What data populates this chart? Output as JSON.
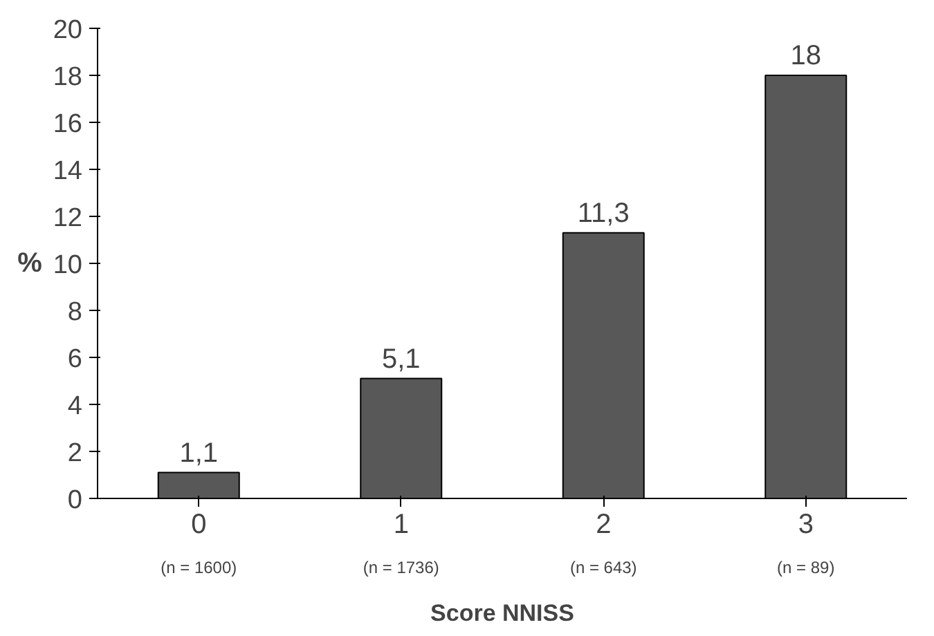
{
  "chart_data": {
    "type": "bar",
    "xlabel": "Score NNISS",
    "ylabel": "%",
    "categories": [
      "0",
      "1",
      "2",
      "3"
    ],
    "values": [
      1.1,
      5.1,
      11.3,
      18
    ],
    "value_labels": [
      "1,1",
      "5,1",
      "11,3",
      "18"
    ],
    "color": "#585858",
    "ylim": [
      0,
      20
    ],
    "yticks": [
      0,
      2,
      4,
      6,
      8,
      10,
      12,
      14,
      16,
      18,
      20
    ],
    "grid": false,
    "annotations": [
      "(n = 1600)",
      "(n = 1736)",
      "(n = 643)",
      "(n = 89)"
    ]
  }
}
